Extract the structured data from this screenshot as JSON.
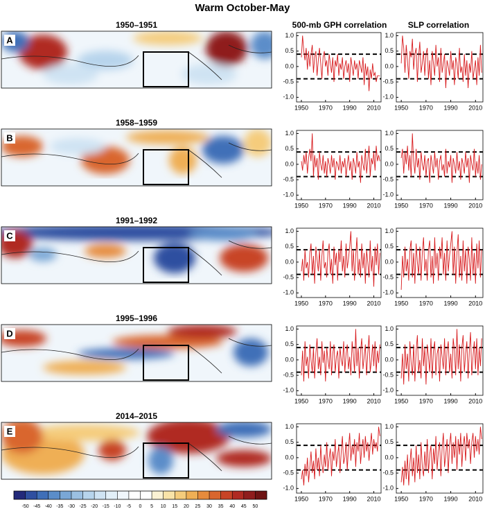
{
  "chart_data": {
    "type": "panel-grid",
    "title": "Warm October-May",
    "columns": [
      "500-mb GPH correlation",
      "SLP correlation"
    ],
    "color": "#d7191c",
    "x": [
      1950,
      1951,
      1952,
      1953,
      1954,
      1955,
      1956,
      1957,
      1958,
      1959,
      1960,
      1961,
      1962,
      1963,
      1964,
      1965,
      1966,
      1967,
      1968,
      1969,
      1970,
      1971,
      1972,
      1973,
      1974,
      1975,
      1976,
      1977,
      1978,
      1979,
      1980,
      1981,
      1982,
      1983,
      1984,
      1985,
      1986,
      1987,
      1988,
      1989,
      1990,
      1991,
      1992,
      1993,
      1994,
      1995,
      1996,
      1997,
      1998,
      1999,
      2000,
      2001,
      2002,
      2003,
      2004,
      2005,
      2006,
      2007,
      2008,
      2009,
      2010,
      2011,
      2012,
      2013,
      2014,
      2015
    ],
    "xlim": [
      1946,
      2016
    ],
    "xticks": [
      1950,
      1970,
      1990,
      2010
    ],
    "ylim": [
      -1.15,
      1.1
    ],
    "yticks": [
      {
        "value": -1,
        "label": "-1.0"
      },
      -0.5,
      {
        "value": 0,
        "label": "0.0"
      },
      0.5,
      {
        "value": 1,
        "label": "1.0"
      }
    ],
    "thresholds": [
      0.4,
      -0.4
    ],
    "panels": [
      {
        "letter": "A",
        "years": "1950–1951",
        "gph": [
          0.3,
          1.0,
          0.5,
          0.2,
          0.6,
          -0.1,
          0.5,
          0.0,
          0.4,
          0.7,
          -0.2,
          0.3,
          0.5,
          -0.3,
          0.2,
          0.6,
          0.1,
          -0.4,
          0.3,
          0.5,
          0.0,
          0.2,
          -0.3,
          0.4,
          0.1,
          -0.2,
          0.3,
          -0.5,
          0.2,
          0.0,
          0.4,
          -0.3,
          0.1,
          -0.1,
          0.3,
          -0.4,
          0.0,
          0.2,
          -0.2,
          0.1,
          -0.5,
          0.3,
          0.0,
          -0.3,
          0.2,
          -0.1,
          0.1,
          -0.4,
          0.2,
          0.0,
          -0.2,
          0.3,
          -0.6,
          0.1,
          -0.3,
          0.0,
          -0.8,
          -0.1,
          -0.4,
          0.1,
          -0.3,
          -0.2,
          -0.5,
          -0.3,
          -0.3,
          -0.3
        ],
        "slp": [
          0.1,
          1.0,
          0.6,
          -0.2,
          0.7,
          0.2,
          -0.4,
          0.5,
          0.3,
          0.9,
          -0.1,
          0.4,
          0.6,
          -0.5,
          0.3,
          0.8,
          -0.2,
          0.1,
          0.5,
          -0.3,
          0.4,
          0.6,
          -0.4,
          0.2,
          -0.6,
          0.5,
          0.1,
          -0.3,
          0.7,
          0.0,
          0.3,
          -0.5,
          0.6,
          -0.2,
          0.1,
          0.4,
          -0.7,
          0.2,
          0.0,
          -0.3,
          0.5,
          -0.1,
          0.2,
          -0.6,
          0.3,
          0.1,
          -0.4,
          0.6,
          -0.2,
          0.0,
          -0.5,
          0.4,
          -0.3,
          0.2,
          -0.7,
          0.1,
          -0.2,
          0.5,
          -0.4,
          -0.1,
          0.2,
          -0.6,
          0.3,
          -0.3,
          0.7,
          -0.2
        ]
      },
      {
        "letter": "B",
        "years": "1958–1959",
        "gph": [
          0.1,
          -0.2,
          0.3,
          0.0,
          0.4,
          -0.3,
          0.2,
          0.5,
          0.1,
          1.0,
          -0.4,
          0.3,
          -0.1,
          0.2,
          -0.5,
          0.4,
          0.0,
          -0.2,
          0.3,
          -0.3,
          0.1,
          -0.4,
          0.2,
          0.0,
          -0.3,
          0.3,
          -0.1,
          0.2,
          -0.5,
          0.1,
          0.0,
          -0.2,
          0.3,
          -0.3,
          0.1,
          -0.1,
          0.2,
          -0.4,
          0.0,
          0.3,
          -0.2,
          0.1,
          -0.5,
          0.2,
          0.0,
          -0.3,
          0.4,
          -0.1,
          0.1,
          -0.6,
          0.3,
          0.0,
          -0.2,
          0.5,
          -0.3,
          0.1,
          0.6,
          -0.4,
          0.2,
          0.0,
          0.4,
          -0.2,
          0.6,
          0.1,
          0.3,
          0.1
        ],
        "slp": [
          0.2,
          0.5,
          -0.3,
          0.4,
          0.0,
          0.6,
          -0.2,
          0.3,
          -0.4,
          1.0,
          0.1,
          -0.3,
          0.5,
          -0.1,
          0.2,
          -0.5,
          0.4,
          0.0,
          -0.2,
          0.3,
          -0.4,
          0.1,
          0.2,
          -0.6,
          0.3,
          0.0,
          -0.3,
          0.4,
          -0.1,
          0.2,
          -0.5,
          0.1,
          0.3,
          -0.2,
          0.0,
          -0.4,
          0.5,
          -0.3,
          0.1,
          -0.1,
          0.3,
          -0.6,
          0.2,
          0.0,
          -0.3,
          0.4,
          -0.2,
          0.1,
          -0.5,
          0.2,
          0.0,
          -0.3,
          0.4,
          -0.1,
          0.2,
          -0.6,
          0.3,
          0.0,
          -0.2,
          0.5,
          -0.4,
          0.1,
          -0.3,
          0.3,
          -0.5,
          0.0
        ]
      },
      {
        "letter": "C",
        "years": "1991–1992",
        "gph": [
          -0.3,
          0.1,
          -0.6,
          0.4,
          -0.2,
          0.0,
          -0.5,
          0.3,
          0.6,
          -0.4,
          0.2,
          -0.7,
          0.5,
          0.1,
          -0.3,
          0.4,
          -0.6,
          0.2,
          0.7,
          -0.2,
          0.0,
          -0.5,
          0.3,
          0.6,
          -0.4,
          0.1,
          -0.7,
          0.5,
          -0.1,
          0.3,
          -0.6,
          0.4,
          0.0,
          0.7,
          -0.3,
          0.2,
          -0.5,
          0.6,
          -0.2,
          0.1,
          0.5,
          1.0,
          -0.3,
          0.4,
          -0.6,
          0.2,
          0.8,
          -0.4,
          0.1,
          -0.5,
          0.6,
          -0.2,
          0.3,
          -0.7,
          0.4,
          0.0,
          -0.5,
          0.7,
          -0.3,
          0.2,
          -0.8,
          0.5,
          -0.1,
          0.6,
          -0.4,
          0.3
        ],
        "slp": [
          -0.9,
          0.2,
          -0.5,
          0.5,
          -0.3,
          0.1,
          -0.6,
          0.4,
          0.7,
          -0.5,
          0.3,
          -0.7,
          0.6,
          0.0,
          -0.4,
          0.5,
          -0.6,
          0.3,
          0.8,
          -0.3,
          0.1,
          -0.6,
          0.4,
          0.7,
          -0.5,
          0.2,
          -0.7,
          0.8,
          -0.2,
          0.3,
          -0.6,
          0.5,
          0.1,
          0.8,
          -0.4,
          0.3,
          -0.6,
          0.7,
          -0.3,
          0.2,
          0.6,
          1.0,
          -0.4,
          0.5,
          -0.7,
          0.3,
          0.9,
          -0.5,
          0.2,
          -0.6,
          0.7,
          -0.3,
          0.4,
          -0.7,
          0.5,
          0.1,
          -0.6,
          0.8,
          -0.4,
          0.3,
          -0.7,
          0.6,
          -0.2,
          0.7,
          -0.5,
          0.4
        ]
      },
      {
        "letter": "D",
        "years": "1995–1996",
        "gph": [
          -0.5,
          0.3,
          -0.7,
          0.6,
          -0.2,
          0.1,
          -0.6,
          0.5,
          0.0,
          -0.4,
          0.4,
          -0.6,
          0.2,
          0.7,
          -0.3,
          0.1,
          -0.5,
          0.6,
          -0.1,
          0.3,
          -0.7,
          0.4,
          0.0,
          -0.3,
          0.6,
          -0.5,
          0.2,
          0.5,
          -0.4,
          0.1,
          0.3,
          -0.6,
          0.4,
          0.0,
          -0.2,
          0.6,
          -0.4,
          0.2,
          0.5,
          -0.3,
          0.1,
          -0.5,
          0.6,
          0.2,
          -0.4,
          1.0,
          -0.2,
          0.4,
          -0.6,
          0.3,
          0.7,
          -0.3,
          0.1,
          0.5,
          -0.5,
          0.2,
          0.8,
          -0.4,
          0.0,
          0.5,
          -0.2,
          0.6,
          -0.4,
          0.3,
          -0.1,
          0.5
        ],
        "slp": [
          -0.6,
          0.2,
          -0.8,
          0.5,
          -0.3,
          0.2,
          -0.7,
          0.6,
          -0.1,
          -0.5,
          0.5,
          -0.7,
          0.3,
          0.8,
          -0.4,
          0.0,
          -0.6,
          0.7,
          -0.2,
          0.4,
          -0.8,
          0.5,
          0.1,
          -0.4,
          0.7,
          -0.6,
          0.3,
          0.6,
          -0.5,
          0.2,
          0.4,
          -0.7,
          0.5,
          0.1,
          -0.3,
          0.7,
          -0.5,
          0.3,
          0.6,
          -0.4,
          0.2,
          -0.6,
          0.7,
          0.3,
          -0.5,
          1.0,
          -0.3,
          0.5,
          -0.7,
          0.4,
          0.8,
          -0.4,
          0.2,
          0.6,
          -0.6,
          0.3,
          0.9,
          -0.5,
          0.1,
          0.6,
          -0.3,
          0.7,
          -0.5,
          0.4,
          -0.2,
          0.7
        ]
      },
      {
        "letter": "E",
        "years": "2014–2015",
        "gph": [
          -0.7,
          -0.4,
          -0.9,
          -0.2,
          -0.6,
          0.0,
          -0.8,
          -0.3,
          0.2,
          -0.5,
          -0.1,
          -0.7,
          0.3,
          -0.4,
          0.0,
          -0.6,
          0.4,
          -0.2,
          -0.5,
          0.1,
          -0.3,
          0.5,
          -0.4,
          0.0,
          0.3,
          -0.6,
          0.2,
          -0.1,
          0.6,
          -0.3,
          0.1,
          0.4,
          -0.5,
          0.2,
          0.7,
          -0.2,
          0.0,
          0.5,
          -0.4,
          0.3,
          0.8,
          -0.1,
          0.4,
          0.1,
          0.6,
          -0.3,
          0.5,
          0.2,
          0.8,
          -0.2,
          0.3,
          0.6,
          0.0,
          0.7,
          0.2,
          0.5,
          -0.1,
          0.4,
          0.8,
          0.1,
          0.6,
          0.3,
          0.5,
          0.2,
          1.0,
          0.7
        ],
        "slp": [
          -0.8,
          -0.3,
          -0.9,
          -0.1,
          -0.7,
          0.1,
          -0.9,
          -0.2,
          0.3,
          -0.6,
          0.0,
          -0.8,
          0.4,
          -0.5,
          0.1,
          -0.7,
          0.5,
          -0.3,
          -0.6,
          0.2,
          -0.4,
          0.6,
          -0.5,
          0.1,
          0.4,
          -0.7,
          0.3,
          -0.2,
          0.7,
          -0.4,
          0.2,
          0.5,
          -0.6,
          0.3,
          0.8,
          -0.3,
          0.1,
          0.6,
          -0.5,
          0.4,
          0.8,
          -0.2,
          0.5,
          0.0,
          0.7,
          -0.4,
          0.6,
          0.1,
          0.8,
          -0.3,
          0.4,
          0.7,
          -0.1,
          0.8,
          0.3,
          0.6,
          -0.2,
          0.5,
          0.8,
          0.0,
          0.7,
          0.2,
          0.6,
          0.1,
          1.0,
          0.6
        ]
      }
    ],
    "colorbar": {
      "clim": [
        -55,
        55
      ],
      "colors": [
        "#23297a",
        "#2f4fa0",
        "#3f6fb8",
        "#5b8dc9",
        "#7aa7d6",
        "#9bc0e2",
        "#b7d4ec",
        "#cfe3f3",
        "#e2eff8",
        "#f0f6fb",
        "#ffffff",
        "#ffffff",
        "#fbf2d4",
        "#f9e3a8",
        "#f5cc7c",
        "#efaf55",
        "#e68b3c",
        "#d9662e",
        "#c84426",
        "#b02a22",
        "#8f1d1d",
        "#6e1414"
      ],
      "ticks": [
        -50,
        -45,
        -40,
        -35,
        -30,
        -25,
        -20,
        -15,
        -10,
        -5,
        0,
        5,
        10,
        15,
        20,
        25,
        30,
        35,
        40,
        45,
        50
      ]
    }
  }
}
